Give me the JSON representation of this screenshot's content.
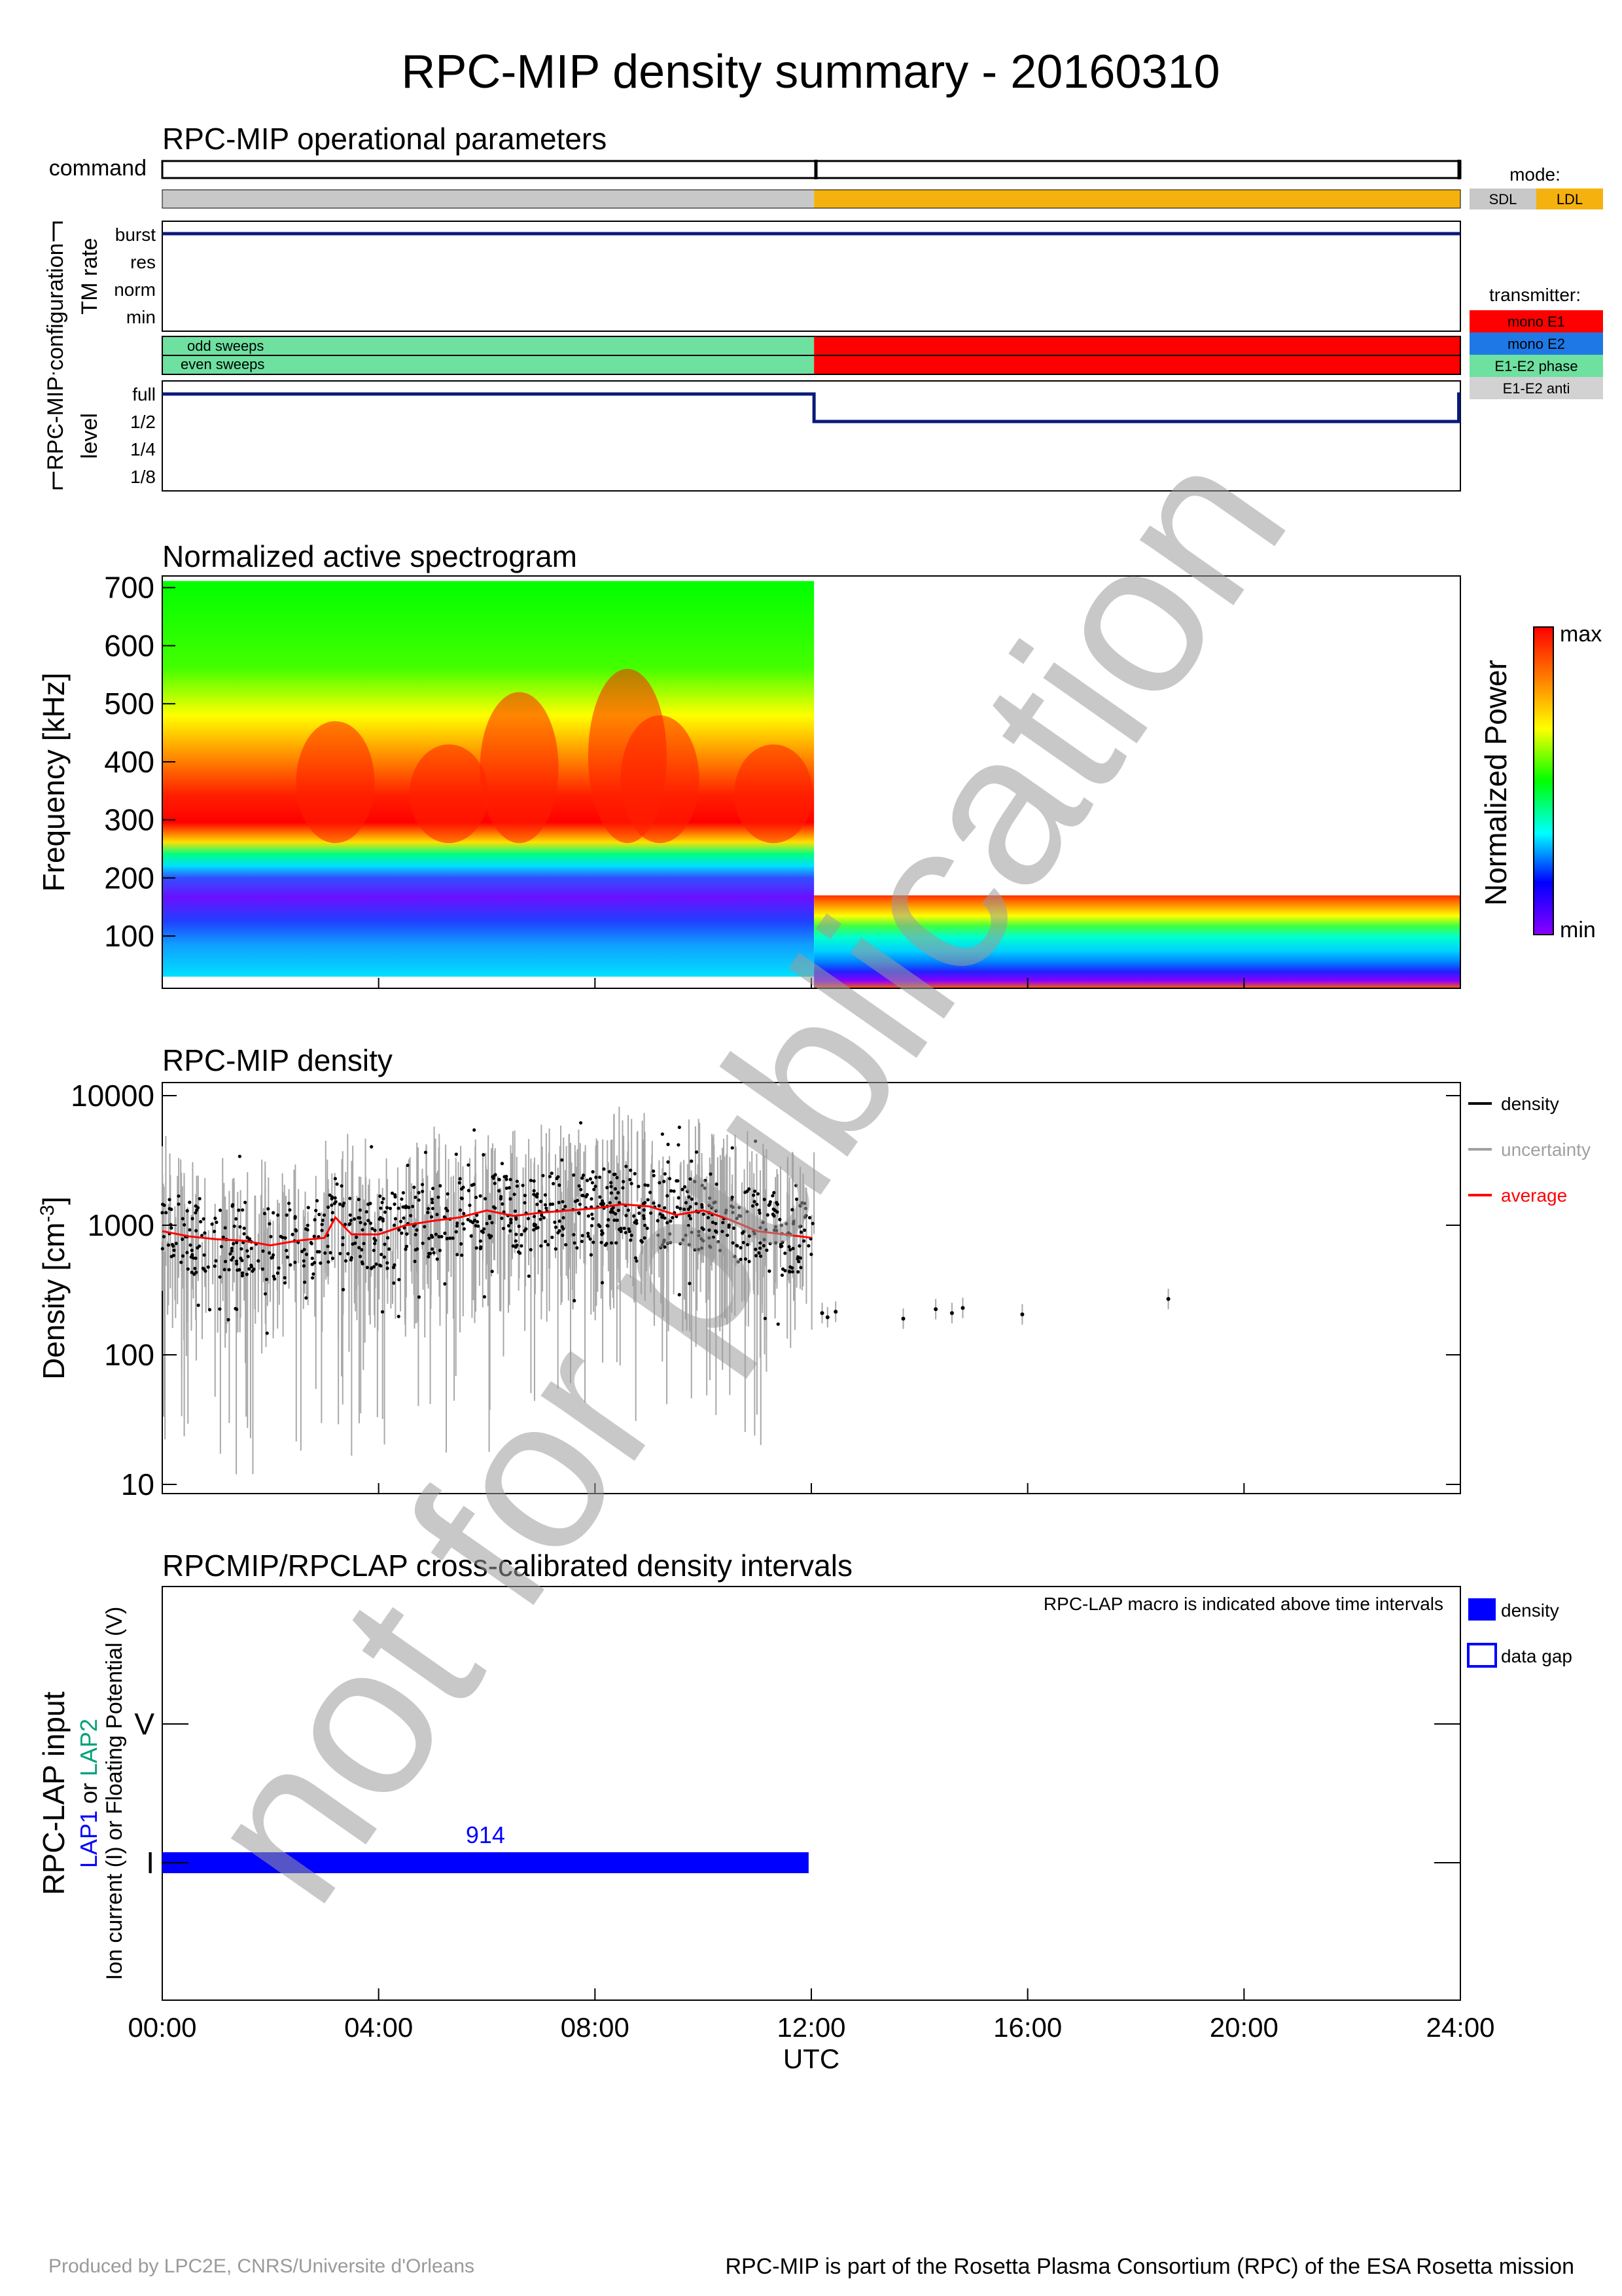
{
  "page": {
    "title": "RPC-MIP density summary - 20160310",
    "watermark": "not for publication",
    "footer_left": "Produced by LPC2E, CNRS/Universite d'Orleans",
    "footer_right": "RPC-MIP is part of the Rosetta Plasma Consortium (RPC) of the ESA Rosetta mission"
  },
  "colors": {
    "navy": "#0a1a7a",
    "sdl_gray": "#c8c8c8",
    "ldl_orange": "#f5b10e",
    "mono_e1": "#ff0000",
    "mono_e2": "#1e78e6",
    "e1e2_phase": "#6ee0a0",
    "e1e2_anti": "#d2d2d2",
    "lap_blue": "#0000ff",
    "lap2_green": "#00a07a",
    "avg_red": "#ff0000"
  },
  "operational": {
    "title": "RPC-MIP operational parameters",
    "command_label": "command",
    "side_label": "RPC-MIP configuration",
    "tm_label": "TM rate",
    "tm_ticks": [
      "burst",
      "res",
      "norm",
      "min"
    ],
    "sweep_labels": [
      "odd sweeps",
      "even sweeps"
    ],
    "level_label": "level",
    "level_ticks": [
      "full",
      "1/2",
      "1/4",
      "1/8"
    ],
    "mode_legend": {
      "title": "mode:",
      "items": [
        "SDL",
        "LDL"
      ]
    },
    "transmitter_legend": {
      "title": "transmitter:",
      "items": [
        "mono E1",
        "mono E2",
        "E1-E2 phase",
        "E1-E2 anti"
      ]
    },
    "switch_hour": 12.05,
    "mode_segments": [
      {
        "start": 0,
        "end": 12.05,
        "mode": "SDL"
      },
      {
        "start": 12.05,
        "end": 24,
        "mode": "LDL"
      }
    ],
    "tm_rate": "burst",
    "transmitter_segments": [
      {
        "start": 0,
        "end": 12.05,
        "type": "E1-E2 phase"
      },
      {
        "start": 12.05,
        "end": 24,
        "type": "mono E1"
      }
    ],
    "level_segments": [
      {
        "start": 0,
        "end": 12.05,
        "level": "full"
      },
      {
        "start": 12.05,
        "end": 23.97,
        "level": "1/2"
      },
      {
        "start": 23.97,
        "end": 24,
        "level": "full"
      }
    ]
  },
  "chart_data": [
    {
      "type": "heatmap",
      "title": "Normalized active spectrogram",
      "ylabel": "Frequency [kHz]",
      "yticks": [
        "700",
        "600",
        "500",
        "400",
        "300",
        "200",
        "100"
      ],
      "ylim": [
        30,
        700
      ],
      "xlim": [
        0,
        24
      ],
      "colorbar": {
        "label": "Normalized Power",
        "max_label": "max",
        "min_label": "min"
      },
      "segments": [
        {
          "start": 0,
          "end": 12.05,
          "fmax": 700,
          "peak_band_khz": [
            240,
            400
          ]
        },
        {
          "start": 12.05,
          "end": 24,
          "fmax": 170,
          "peak_band_khz": [
            155,
            170
          ]
        }
      ]
    },
    {
      "type": "scatter",
      "title": "RPC-MIP density",
      "ylabel": "Density [cm-3]",
      "yscale": "log",
      "ylim": [
        10,
        10000
      ],
      "yticks": [
        "10",
        "100",
        "1000",
        "10000"
      ],
      "xlim": [
        0,
        24
      ],
      "legend": [
        "density",
        "uncertainty",
        "average"
      ],
      "average": {
        "x": [
          0,
          0.5,
          1,
          1.5,
          2,
          2.5,
          3,
          3.2,
          3.5,
          4,
          4.5,
          5,
          5.5,
          6,
          6.5,
          7,
          7.5,
          8,
          8.5,
          9,
          9.5,
          10,
          10.5,
          11,
          11.5,
          12
        ],
        "y": [
          900,
          820,
          780,
          760,
          700,
          760,
          800,
          1150,
          850,
          850,
          1000,
          1080,
          1150,
          1300,
          1180,
          1250,
          1300,
          1350,
          1450,
          1400,
          1200,
          1300,
          1100,
          900,
          850,
          800
        ]
      },
      "afternoon_points": {
        "x": [
          12.2,
          12.3,
          12.45,
          13.7,
          14.3,
          14.6,
          14.8,
          15.9,
          18.6
        ],
        "y": [
          210,
          195,
          215,
          190,
          225,
          210,
          230,
          205,
          270
        ]
      }
    },
    {
      "type": "bar",
      "title": "RPCMIP/RPCLAP cross-calibrated density intervals",
      "ylabel": "RPC-LAP input",
      "ylabel_lap1": "LAP1",
      "ylabel_or": "or",
      "ylabel_lap2": "LAP2",
      "ylabel_sub": "Ion current (I) or Floating Potential (V)",
      "categories": [
        "V",
        "I"
      ],
      "note": "RPC-LAP macro is indicated above time intervals",
      "legend": [
        "density",
        "data gap"
      ],
      "intervals": [
        {
          "category": "I",
          "start": 0,
          "end": 11.95,
          "macro": "914"
        }
      ],
      "xticks": [
        "00:00",
        "04:00",
        "08:00",
        "12:00",
        "16:00",
        "20:00",
        "24:00"
      ],
      "xlabel": "UTC",
      "xlim": [
        0,
        24
      ]
    }
  ]
}
